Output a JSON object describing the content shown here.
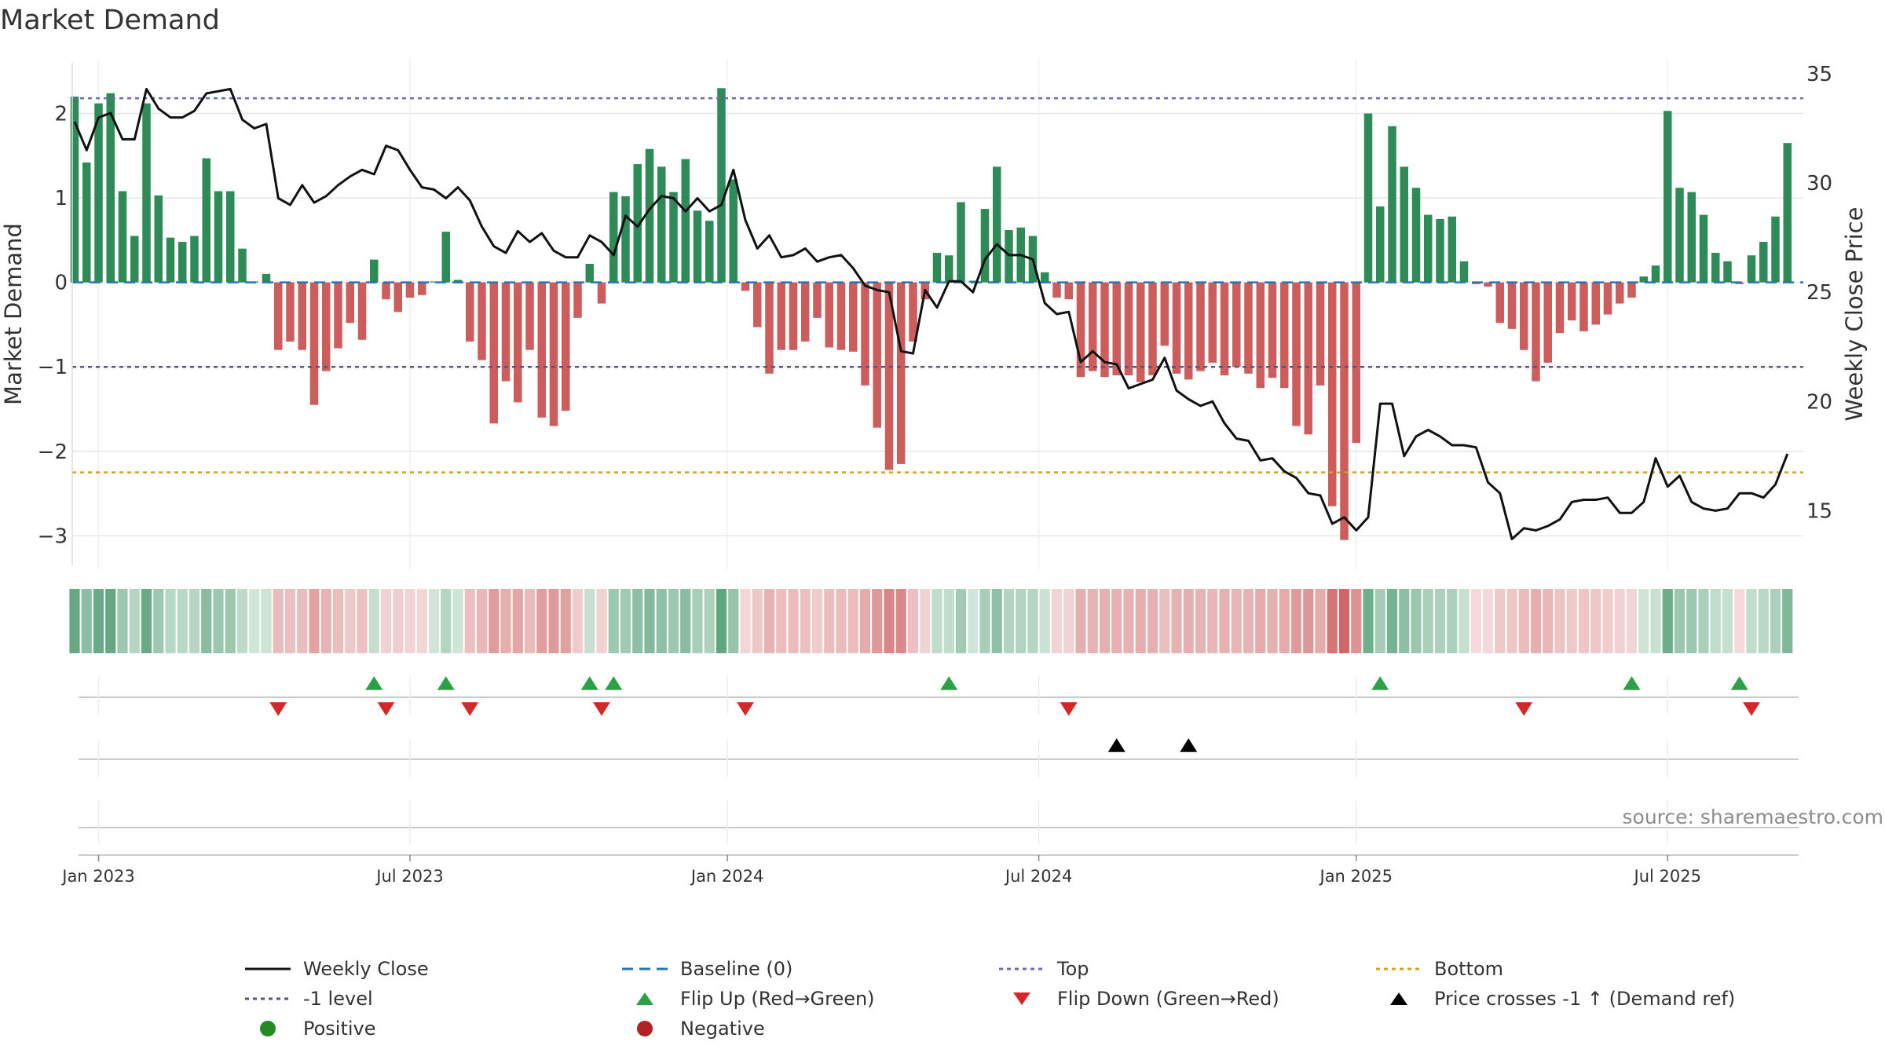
{
  "chart_data": {
    "type": "bar",
    "title": "Market Demand",
    "ylabel_left": "Market Demand",
    "ylabel_right": "Weekly Close Price",
    "ylim_left": [
      -3.35,
      2.6
    ],
    "ylim_right": [
      12.5,
      35.5
    ],
    "yticks_left": [
      2,
      1,
      0,
      -1,
      -2,
      -3
    ],
    "yticks_left_labels": [
      "2",
      "1",
      "0",
      "−1",
      "−2",
      "−3"
    ],
    "yticks_right": [
      35,
      30,
      25,
      20,
      15
    ],
    "yticks_right_labels": [
      "35",
      "30",
      "25",
      "20",
      "15"
    ],
    "xtick_labels": [
      "Jan 2023",
      "Jul 2023",
      "Jan 2024",
      "Jul 2024",
      "Jan 2025",
      "Jul 2025"
    ],
    "xtick_index": [
      2,
      28,
      54.5,
      80.5,
      107,
      133
    ],
    "top_level": 2.18,
    "bottom_level": -2.25,
    "minus1_level": -1.0,
    "baseline": 0,
    "source": "source: sharemaestro.com",
    "demand": [
      2.2,
      1.42,
      2.12,
      2.24,
      1.08,
      0.55,
      2.12,
      1.03,
      0.53,
      0.48,
      0.55,
      1.47,
      1.08,
      1.08,
      0.4,
      0,
      0.1,
      -0.8,
      -0.7,
      -0.8,
      -1.45,
      -1.05,
      -0.78,
      -0.48,
      -0.68,
      0.27,
      -0.2,
      -0.35,
      -0.18,
      -0.15,
      0,
      0.6,
      0.03,
      -0.7,
      -0.92,
      -1.67,
      -1.17,
      -1.42,
      -0.8,
      -1.6,
      -1.7,
      -1.52,
      -0.42,
      0.22,
      -0.25,
      1.07,
      1.02,
      1.4,
      1.58,
      1.37,
      1.07,
      1.46,
      0.85,
      0.73,
      2.3,
      1.22,
      -0.1,
      -0.53,
      -1.08,
      -0.8,
      -0.8,
      -0.7,
      -0.42,
      -0.77,
      -0.8,
      -0.82,
      -1.22,
      -1.72,
      -2.22,
      -2.15,
      -0.7,
      -0.2,
      0.35,
      0.32,
      0.95,
      0.02,
      0.87,
      1.37,
      0.62,
      0.65,
      0.55,
      0.12,
      -0.18,
      -0.2,
      -1.12,
      -1.05,
      -1.12,
      -1.1,
      -1.1,
      -1.18,
      -1.1,
      -0.75,
      -1.08,
      -1.15,
      -1.05,
      -0.95,
      -1.1,
      -1.0,
      -1.08,
      -1.25,
      -1.13,
      -1.25,
      -1.7,
      -1.8,
      -1.22,
      -2.65,
      -3.05,
      -1.9,
      2.0,
      0.9,
      1.85,
      1.37,
      1.12,
      0.8,
      0.75,
      0.78,
      0.25,
      -0.02,
      -0.05,
      -0.48,
      -0.55,
      -0.8,
      -1.17,
      -0.95,
      -0.6,
      -0.45,
      -0.58,
      -0.5,
      -0.38,
      -0.25,
      -0.18,
      0.07,
      0.2,
      2.03,
      1.12,
      1.07,
      0.8,
      0.35,
      0.25,
      -0.02,
      0.32,
      0.48,
      0.78,
      1.65
    ],
    "weekly_close": [
      32.8,
      31.5,
      33.0,
      33.2,
      32.0,
      32.0,
      34.3,
      33.4,
      33.0,
      33.0,
      33.3,
      34.1,
      34.2,
      34.3,
      32.9,
      32.5,
      32.7,
      29.3,
      29.0,
      29.9,
      29.1,
      29.4,
      29.9,
      30.3,
      30.6,
      30.4,
      31.7,
      31.5,
      30.6,
      29.8,
      29.7,
      29.3,
      29.8,
      29.2,
      28.0,
      27.1,
      26.8,
      27.8,
      27.3,
      27.7,
      26.9,
      26.6,
      26.6,
      27.6,
      27.3,
      26.7,
      28.5,
      28.0,
      28.8,
      29.4,
      29.3,
      28.7,
      29.3,
      28.7,
      29.0,
      30.6,
      28.3,
      27.0,
      27.6,
      26.6,
      26.7,
      27.0,
      26.4,
      26.6,
      26.7,
      26.1,
      25.3,
      25.1,
      25.0,
      22.3,
      22.2,
      25.1,
      24.3,
      25.5,
      25.5,
      25.0,
      26.5,
      27.2,
      26.7,
      26.7,
      26.5,
      24.5,
      24.0,
      24.1,
      21.8,
      22.3,
      21.8,
      21.7,
      20.6,
      20.8,
      21.0,
      22.0,
      20.5,
      20.1,
      19.8,
      20.0,
      19.0,
      18.3,
      18.2,
      17.3,
      17.4,
      16.8,
      16.5,
      15.8,
      15.7,
      14.4,
      14.7,
      14.1,
      14.7,
      19.9,
      19.9,
      17.5,
      18.4,
      18.7,
      18.4,
      18.0,
      18.0,
      17.9,
      16.3,
      15.8,
      13.7,
      14.2,
      14.1,
      14.3,
      14.6,
      15.4,
      15.5,
      15.5,
      15.6,
      14.9,
      14.9,
      15.4,
      17.4,
      16.1,
      16.6,
      15.4,
      15.1,
      15.0,
      15.1,
      15.8,
      15.8,
      15.6,
      16.2,
      17.6
    ],
    "flip_up_index": [
      25,
      31,
      43,
      45,
      73,
      109,
      130,
      139
    ],
    "flip_down_index": [
      17,
      26,
      33,
      44,
      56,
      83,
      121,
      140
    ],
    "price_cross_index": [
      87,
      93
    ],
    "legend": [
      {
        "key": "weekly_close",
        "label": "Weekly Close"
      },
      {
        "key": "baseline",
        "label": "Baseline (0)"
      },
      {
        "key": "top",
        "label": "Top"
      },
      {
        "key": "bottom",
        "label": "Bottom"
      },
      {
        "key": "minus1",
        "label": "-1 level"
      },
      {
        "key": "flip_up",
        "label": "Flip Up (Red→Green)"
      },
      {
        "key": "flip_down",
        "label": "Flip Down (Green→Red)"
      },
      {
        "key": "price_cross",
        "label": "Price crosses -1 ↑ (Demand ref)"
      },
      {
        "key": "positive",
        "label": "Positive"
      },
      {
        "key": "negative",
        "label": "Negative"
      }
    ],
    "colors": {
      "pos": "#2e8b57",
      "neg": "#cd5c5c",
      "weekly_close": "#111111",
      "baseline": "#1f77b4",
      "top": "#6b6bb5",
      "bottom": "#d4a017",
      "minus1": "#555577",
      "flip_up": "#2ca044",
      "flip_down": "#d62728",
      "price_cross": "#000000",
      "positive_dot": "#228b22",
      "negative_dot": "#b22222",
      "grid": "#e6e6e6",
      "axis": "#cccccc",
      "text": "#333333"
    }
  }
}
